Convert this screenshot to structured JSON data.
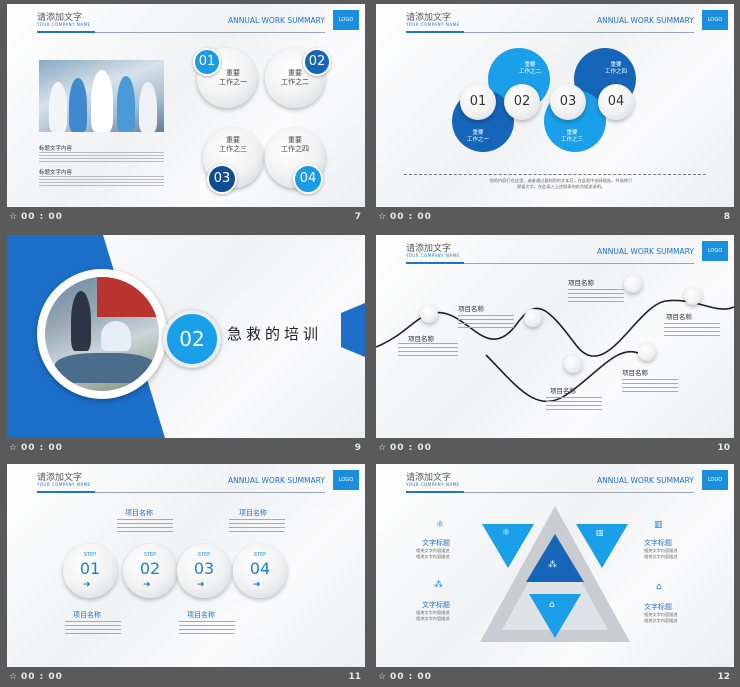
{
  "header": {
    "title": "请添加文字",
    "subtitle": "YOUR COMPANY NAME",
    "annual": "ANNUAL WORK SUMMARY",
    "logo": "LOGO"
  },
  "slides": [
    {
      "number": "7",
      "time": "00 : 00",
      "items": [
        {
          "num": "01",
          "text": "重要\n工作之一"
        },
        {
          "num": "02",
          "text": "重要\n工作之二"
        },
        {
          "num": "03",
          "text": "重要\n工作之三"
        },
        {
          "num": "04",
          "text": "重要\n工作之四"
        }
      ],
      "caption1": "标题文字内容",
      "caption2": "标题文字内容"
    },
    {
      "number": "8",
      "time": "00 : 00",
      "items": [
        {
          "num": "01",
          "text": "重要\n工作之一"
        },
        {
          "num": "02",
          "text": "重要\n工作之二"
        },
        {
          "num": "03",
          "text": "重要\n工作之三"
        },
        {
          "num": "04",
          "text": "重要\n工作之四"
        }
      ],
      "note1": "您的内容打在这里，或者通过复制您的文本后，在此框中选择粘贴，并选择只",
      "note2": "保留文字。在此录入上述图表的综合描述说明。"
    },
    {
      "number": "9",
      "time": "00 : 00",
      "num": "02",
      "title": "急救的培训"
    },
    {
      "number": "10",
      "time": "00 : 00",
      "item_label": "项目名称"
    },
    {
      "number": "11",
      "time": "00 : 00",
      "steps": [
        "01",
        "02",
        "03",
        "04"
      ],
      "step_word": "STEP",
      "item_label": "项目名称"
    },
    {
      "number": "12",
      "time": "00 : 00",
      "label": "文字标题",
      "desc1": "相关文字内容描述",
      "desc2": "相关文字内容描述"
    }
  ],
  "icon_star": "☆"
}
